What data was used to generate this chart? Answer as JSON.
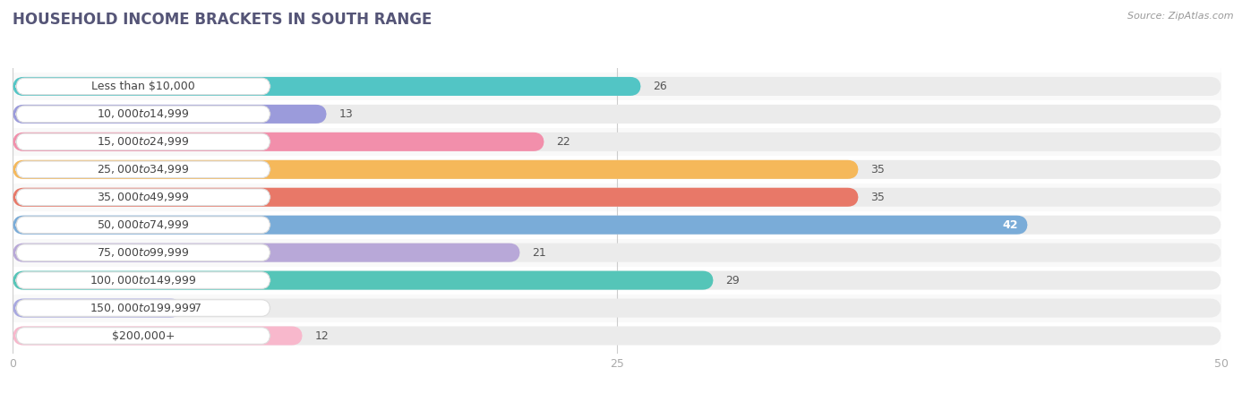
{
  "title": "HOUSEHOLD INCOME BRACKETS IN SOUTH RANGE",
  "source": "Source: ZipAtlas.com",
  "categories": [
    "Less than $10,000",
    "$10,000 to $14,999",
    "$15,000 to $24,999",
    "$25,000 to $34,999",
    "$35,000 to $49,999",
    "$50,000 to $74,999",
    "$75,000 to $99,999",
    "$100,000 to $149,999",
    "$150,000 to $199,999",
    "$200,000+"
  ],
  "values": [
    26,
    13,
    22,
    35,
    35,
    42,
    21,
    29,
    7,
    12
  ],
  "bar_colors": [
    "#52c5c5",
    "#9b9bdb",
    "#f28fab",
    "#f5b85a",
    "#e87868",
    "#7aacd8",
    "#b8a8d8",
    "#55c5b8",
    "#a8a8e0",
    "#f8b8cc"
  ],
  "xlim": [
    0,
    50
  ],
  "xticks": [
    0,
    25,
    50
  ],
  "background_color": "#ffffff",
  "bar_bg_color": "#ebebeb",
  "row_bg_even": "#f9f9f9",
  "row_bg_odd": "#ffffff",
  "title_fontsize": 12,
  "label_fontsize": 9,
  "value_fontsize": 9,
  "value_inside_threshold": 38
}
